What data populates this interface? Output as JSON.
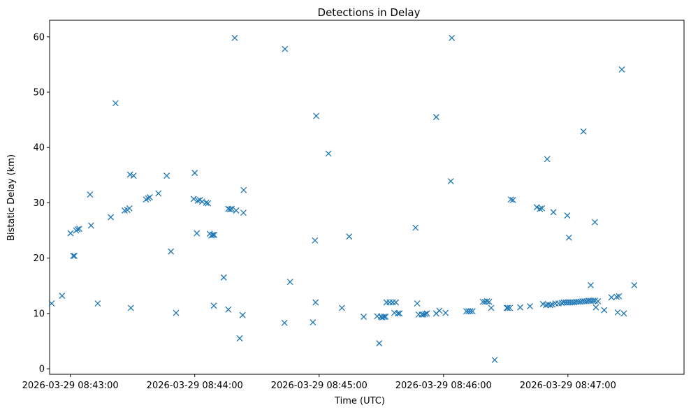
{
  "chart_data": {
    "type": "scatter",
    "title": "Detections in Delay",
    "xlabel": "Time (UTC)",
    "ylabel": "Bistatic Delay (km)",
    "x_unit": "seconds after 2026-03-29 08:42:00 UTC",
    "xlim": [
      50,
      356
    ],
    "ylim": [
      -1,
      63
    ],
    "xticks": [
      {
        "value": 60,
        "label": "2026-03-29 08:43:00"
      },
      {
        "value": 120,
        "label": "2026-03-29 08:44:00"
      },
      {
        "value": 180,
        "label": "2026-03-29 08:45:00"
      },
      {
        "value": 240,
        "label": "2026-03-29 08:46:00"
      },
      {
        "value": 300,
        "label": "2026-03-29 08:47:00"
      }
    ],
    "yticks": [
      0,
      10,
      20,
      30,
      40,
      50,
      60
    ],
    "marker": "x",
    "color": "#1f77b4",
    "series": [
      {
        "name": "detections",
        "points": [
          [
            51.0,
            11.8
          ],
          [
            56.0,
            13.2
          ],
          [
            60.1,
            24.5
          ],
          [
            61.4,
            20.4
          ],
          [
            62.0,
            20.4
          ],
          [
            62.8,
            25.0
          ],
          [
            63.5,
            25.2
          ],
          [
            64.3,
            25.3
          ],
          [
            69.5,
            31.5
          ],
          [
            70.0,
            25.9
          ],
          [
            73.2,
            11.8
          ],
          [
            79.5,
            27.4
          ],
          [
            81.8,
            48.0
          ],
          [
            86.2,
            28.6
          ],
          [
            87.5,
            28.7
          ],
          [
            88.5,
            29.0
          ],
          [
            88.8,
            35.1
          ],
          [
            89.2,
            11.0
          ],
          [
            90.5,
            34.9
          ],
          [
            96.5,
            30.6
          ],
          [
            97.5,
            30.8
          ],
          [
            98.3,
            31.0
          ],
          [
            102.5,
            31.7
          ],
          [
            106.5,
            34.9
          ],
          [
            108.5,
            21.2
          ],
          [
            111.0,
            10.1
          ],
          [
            120.0,
            35.4
          ],
          [
            119.5,
            30.7
          ],
          [
            121.0,
            24.5
          ],
          [
            121.5,
            30.4
          ],
          [
            122.5,
            30.5
          ],
          [
            123.6,
            30.2
          ],
          [
            125.5,
            30.0
          ],
          [
            126.4,
            29.9
          ],
          [
            127.2,
            24.4
          ],
          [
            128.0,
            24.1
          ],
          [
            128.7,
            24.2
          ],
          [
            129.4,
            24.2
          ],
          [
            129.2,
            11.4
          ],
          [
            134.0,
            16.5
          ],
          [
            136.2,
            10.7
          ],
          [
            136.2,
            28.9
          ],
          [
            137.0,
            28.8
          ],
          [
            137.8,
            28.9
          ],
          [
            139.3,
            59.8
          ],
          [
            140.0,
            28.6
          ],
          [
            141.7,
            5.5
          ],
          [
            143.1,
            9.7
          ],
          [
            143.6,
            32.3
          ],
          [
            143.5,
            28.2
          ],
          [
            163.5,
            57.8
          ],
          [
            163.3,
            8.3
          ],
          [
            166.0,
            15.7
          ],
          [
            177.0,
            8.4
          ],
          [
            178.0,
            23.2
          ],
          [
            178.3,
            12.0
          ],
          [
            178.6,
            45.7
          ],
          [
            184.5,
            38.9
          ],
          [
            191.0,
            11.0
          ],
          [
            194.5,
            23.9
          ],
          [
            201.5,
            9.4
          ],
          [
            208.0,
            9.5
          ],
          [
            209.0,
            4.6
          ],
          [
            209.8,
            9.4
          ],
          [
            210.5,
            9.3
          ],
          [
            211.3,
            9.4
          ],
          [
            212.0,
            9.4
          ],
          [
            212.5,
            12.0
          ],
          [
            214.0,
            12.0
          ],
          [
            215.5,
            12.0
          ],
          [
            216.3,
            10.1
          ],
          [
            217.0,
            12.0
          ],
          [
            218.0,
            10.0
          ],
          [
            218.8,
            10.0
          ],
          [
            226.5,
            25.5
          ],
          [
            227.3,
            11.8
          ],
          [
            228.0,
            9.8
          ],
          [
            229.5,
            9.8
          ],
          [
            230.3,
            9.8
          ],
          [
            231.2,
            9.9
          ],
          [
            232.0,
            10.0
          ],
          [
            236.5,
            45.5
          ],
          [
            236.5,
            10.0
          ],
          [
            238.0,
            10.5
          ],
          [
            241.0,
            10.1
          ],
          [
            243.5,
            33.9
          ],
          [
            244.0,
            59.8
          ],
          [
            251.0,
            10.4
          ],
          [
            252.0,
            10.4
          ],
          [
            253.0,
            10.4
          ],
          [
            254.0,
            10.4
          ],
          [
            259.0,
            12.1
          ],
          [
            260.0,
            12.1
          ],
          [
            261.0,
            12.2
          ],
          [
            262.0,
            12.1
          ],
          [
            263.0,
            11.0
          ],
          [
            264.7,
            1.6
          ],
          [
            270.5,
            11.0
          ],
          [
            271.0,
            11.0
          ],
          [
            272.0,
            11.0
          ],
          [
            272.5,
            30.6
          ],
          [
            273.5,
            30.5
          ],
          [
            277.0,
            11.1
          ],
          [
            281.7,
            11.3
          ],
          [
            285.0,
            29.2
          ],
          [
            286.5,
            28.9
          ],
          [
            287.5,
            29.0
          ],
          [
            288.0,
            11.7
          ],
          [
            289.5,
            11.5
          ],
          [
            290.0,
            37.9
          ],
          [
            290.5,
            11.6
          ],
          [
            291.5,
            11.5
          ],
          [
            292.5,
            11.6
          ],
          [
            293.0,
            28.3
          ],
          [
            294.0,
            11.8
          ],
          [
            295.5,
            11.8
          ],
          [
            297.0,
            11.9
          ],
          [
            298.0,
            12.0
          ],
          [
            299.0,
            12.0
          ],
          [
            299.7,
            27.7
          ],
          [
            300.0,
            12.0
          ],
          [
            300.5,
            23.7
          ],
          [
            301.0,
            12.0
          ],
          [
            302.0,
            12.0
          ],
          [
            303.0,
            12.0
          ],
          [
            304.0,
            12.1
          ],
          [
            305.0,
            12.1
          ],
          [
            306.0,
            12.1
          ],
          [
            307.0,
            12.2
          ],
          [
            307.5,
            42.9
          ],
          [
            308.0,
            12.2
          ],
          [
            309.0,
            12.2
          ],
          [
            310.0,
            12.3
          ],
          [
            311.0,
            15.1
          ],
          [
            311.0,
            12.3
          ],
          [
            312.0,
            12.3
          ],
          [
            313.0,
            26.5
          ],
          [
            313.0,
            12.3
          ],
          [
            313.5,
            11.1
          ],
          [
            314.5,
            12.2
          ],
          [
            317.5,
            10.6
          ],
          [
            321.0,
            12.9
          ],
          [
            323.5,
            13.0
          ],
          [
            324.0,
            10.2
          ],
          [
            324.6,
            13.1
          ],
          [
            326.0,
            54.1
          ],
          [
            327.0,
            10.0
          ],
          [
            332.0,
            15.1
          ]
        ]
      }
    ]
  }
}
